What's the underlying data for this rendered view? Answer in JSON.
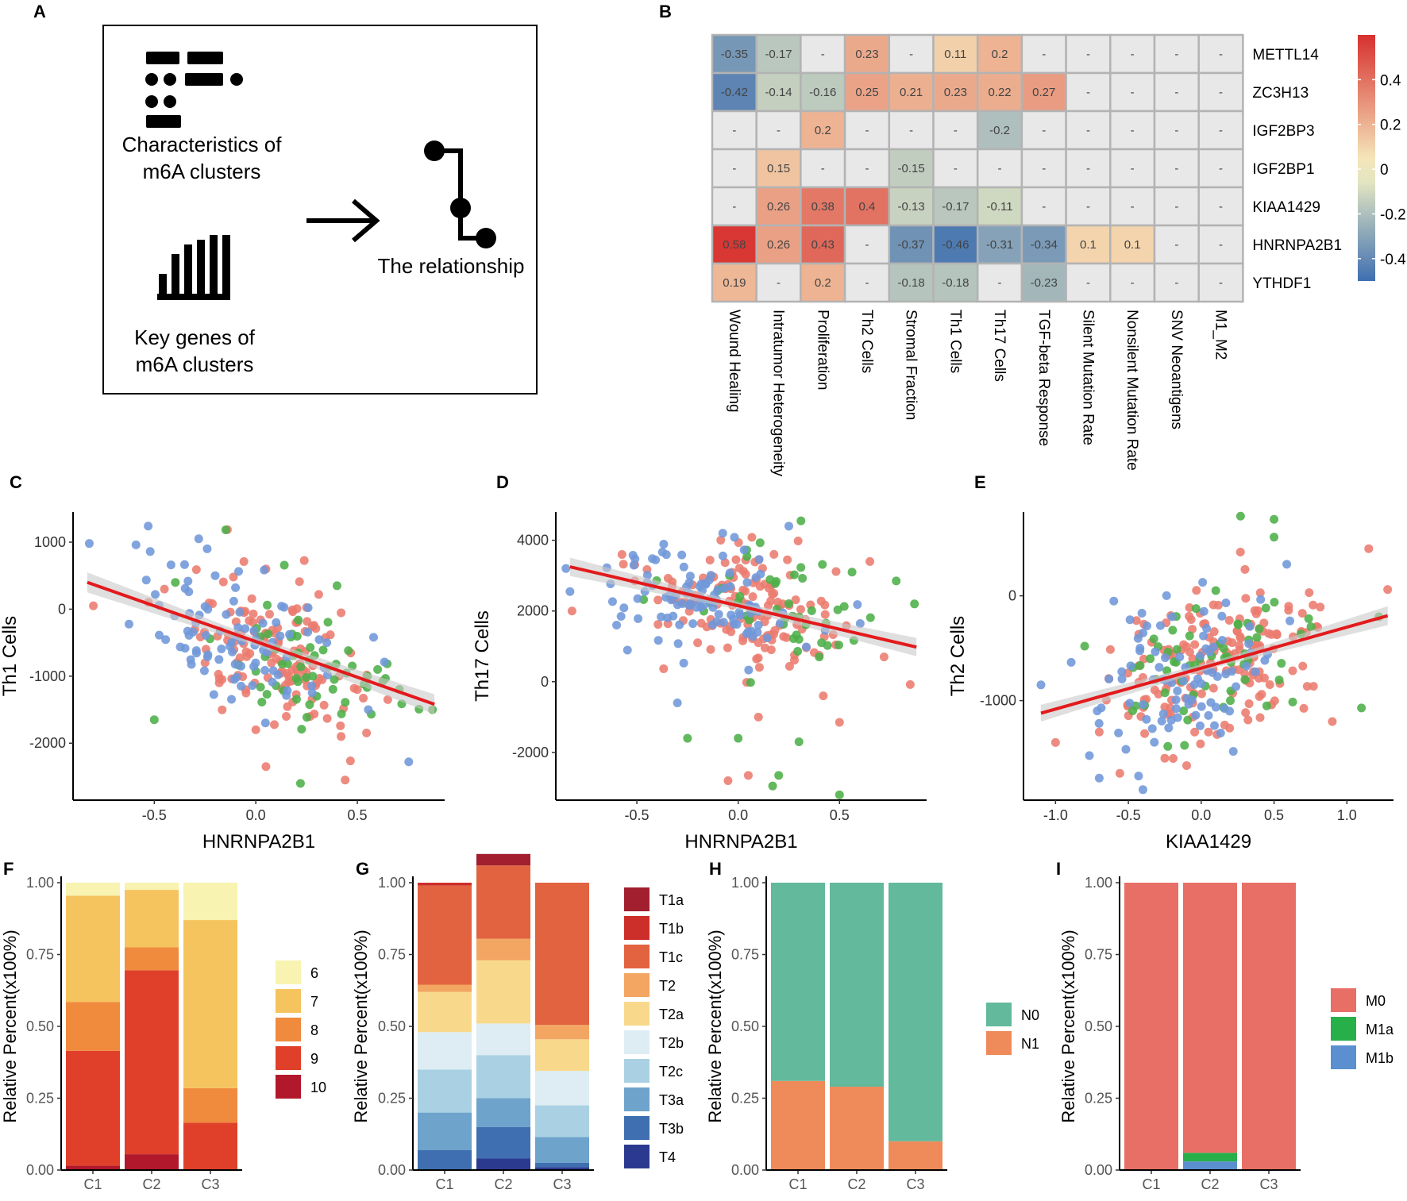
{
  "panel_labels": [
    "A",
    "B",
    "C",
    "D",
    "E",
    "F",
    "G",
    "H",
    "I"
  ],
  "schematic": {
    "block1_line1": "Characteristics of",
    "block1_line2": "m6A clusters",
    "block2_line1": "Key genes of",
    "block2_line2": "m6A clusters",
    "block3": "The relationship",
    "icon_list": "list-icon",
    "icon_bars": "bar-chart-icon",
    "icon_arrow": "arrow-right-icon",
    "icon_path": "path-nodes-icon"
  },
  "chart_data": [
    {
      "panel": "B",
      "type": "heatmap",
      "rows": [
        "METTL14",
        "ZC3H13",
        "IGF2BP3",
        "IGF2BP1",
        "KIAA1429",
        "HNRNPA2B1",
        "YTHDF1"
      ],
      "cols": [
        "Wound Healing",
        "Intratumor Heterogeneity",
        "Proliferation",
        "Th2 Cells",
        "Stromal Fraction",
        "Th1 Cells",
        "Th17 Cells",
        "TGF-beta Response",
        "Silent Mutation Rate",
        "Nonsilent Mutation Rate",
        "SNV Neoantigens",
        "M1_M2"
      ],
      "values": [
        [
          -0.35,
          -0.17,
          null,
          0.23,
          null,
          0.11,
          0.2,
          null,
          null,
          null,
          null,
          null
        ],
        [
          -0.42,
          -0.14,
          -0.16,
          0.25,
          0.21,
          0.23,
          0.22,
          0.27,
          null,
          null,
          null,
          null
        ],
        [
          null,
          null,
          0.2,
          null,
          null,
          null,
          -0.2,
          null,
          null,
          null,
          null,
          null
        ],
        [
          null,
          0.15,
          null,
          null,
          -0.15,
          null,
          null,
          null,
          null,
          null,
          null,
          null
        ],
        [
          null,
          0.26,
          0.38,
          0.4,
          -0.13,
          -0.17,
          -0.11,
          null,
          null,
          null,
          null,
          null
        ],
        [
          0.58,
          0.26,
          0.43,
          null,
          -0.37,
          -0.46,
          -0.31,
          -0.34,
          0.1,
          0.1,
          null,
          null
        ],
        [
          0.19,
          null,
          0.2,
          null,
          -0.18,
          -0.18,
          null,
          -0.23,
          null,
          null,
          null,
          null
        ]
      ],
      "missing_label": "-",
      "range": [
        -0.5,
        0.6
      ],
      "legend_ticks": [
        0.4,
        0.2,
        0,
        -0.2,
        -0.4
      ],
      "legend_tick_labels": [
        "0.4",
        "0.2",
        "0",
        "-0.2",
        "-0.4"
      ]
    },
    {
      "panel": "C",
      "type": "scatter",
      "xlabel": "HNRNPA2B1",
      "ylabel": "Th1 Cells",
      "xlim": [
        -0.9,
        0.93
      ],
      "ylim": [
        -2850,
        1450
      ],
      "xticks": [
        -0.5,
        0.0,
        0.5
      ],
      "xtick_labels": [
        "-0.5",
        "0.0",
        "0.5"
      ],
      "yticks": [
        -2000,
        -1000,
        0,
        1000
      ],
      "ytick_labels": [
        "-2000",
        "-1000",
        "0",
        "1000"
      ],
      "fit": {
        "x0": -0.83,
        "y0": 400,
        "x1": 0.88,
        "y1": -1420
      },
      "band_halfwidth": [
        150,
        60,
        150
      ],
      "points": [
        {
          "x": -0.82,
          "y": 980,
          "c": "C1"
        },
        {
          "x": -0.53,
          "y": 1240,
          "c": "C1"
        },
        {
          "x": -0.59,
          "y": 960,
          "c": "C1"
        },
        {
          "x": -0.52,
          "y": 860,
          "c": "C1"
        },
        {
          "x": -0.8,
          "y": 50,
          "c": "C2"
        },
        {
          "x": -0.5,
          "y": -1650,
          "c": "C3"
        },
        {
          "x": 0.22,
          "y": -2600,
          "c": "C3"
        },
        {
          "x": 0.44,
          "y": -2550,
          "c": "C2"
        },
        {
          "x": 0.05,
          "y": -2350,
          "c": "C2"
        },
        {
          "x": 0.87,
          "y": -1500,
          "c": "C3"
        },
        {
          "x": 0.58,
          "y": -420,
          "c": "C1"
        },
        {
          "x": 0.4,
          "y": 350,
          "c": "C3"
        },
        {
          "x": -0.33,
          "y": 260,
          "c": "C1"
        },
        {
          "x": -0.2,
          "y": 500,
          "c": "C1"
        },
        {
          "x": -0.1,
          "y": 320,
          "c": "C1"
        },
        {
          "x": 0.05,
          "y": 600,
          "c": "C2"
        },
        {
          "x": 0.1,
          "y": -200,
          "c": "C1"
        },
        {
          "x": -0.12,
          "y": -500,
          "c": "C1"
        },
        {
          "x": -0.3,
          "y": -300,
          "c": "C2"
        },
        {
          "x": 0.2,
          "y": -900,
          "c": "C2"
        },
        {
          "x": 0.3,
          "y": -1300,
          "c": "C3"
        },
        {
          "x": 0.42,
          "y": -1900,
          "c": "C2"
        },
        {
          "x": 0.55,
          "y": -1000,
          "c": "C3"
        },
        {
          "x": 0.65,
          "y": -1350,
          "c": "C2"
        },
        {
          "x": 0.0,
          "y": -1800,
          "c": "C2"
        },
        {
          "x": -0.05,
          "y": -1200,
          "c": "C2"
        },
        {
          "x": 0.15,
          "y": -1600,
          "c": "C2"
        },
        {
          "x": 0.28,
          "y": -1000,
          "c": "C3"
        },
        {
          "x": -0.4,
          "y": -100,
          "c": "C1"
        },
        {
          "x": -0.25,
          "y": -800,
          "c": "C2"
        },
        {
          "x": -0.45,
          "y": 300,
          "c": "C2"
        },
        {
          "x": 0.35,
          "y": -500,
          "c": "C1"
        },
        {
          "x": 0.5,
          "y": -1200,
          "c": "C2"
        },
        {
          "x": 0.6,
          "y": -900,
          "c": "C3"
        },
        {
          "x": 0.12,
          "y": -400,
          "c": "C1"
        },
        {
          "x": -0.18,
          "y": -1100,
          "c": "C2"
        }
      ],
      "scatter_generator": {
        "seed": 11,
        "n": 260,
        "x_mean": -0.02,
        "x_sd": 0.24,
        "resid_sd": 520,
        "cluster_x_shift": {
          "C1": -0.08,
          "C2": 0.1,
          "C3": 0.3
        }
      }
    },
    {
      "panel": "D",
      "type": "scatter",
      "xlabel": "HNRNPA2B1",
      "ylabel": "Th17 Cells",
      "xlim": [
        -0.9,
        0.93
      ],
      "ylim": [
        -3350,
        4800
      ],
      "xticks": [
        -0.5,
        0.0,
        0.5
      ],
      "xtick_labels": [
        "-0.5",
        "0.0",
        "0.5"
      ],
      "yticks": [
        -2000,
        0,
        2000,
        4000
      ],
      "ytick_labels": [
        "-2000",
        "0",
        "2000",
        "4000"
      ],
      "fit": {
        "x0": -0.83,
        "y0": 3250,
        "x1": 0.88,
        "y1": 980
      },
      "band_halfwidth": [
        260,
        100,
        260
      ],
      "points": [
        {
          "x": 0.31,
          "y": 4550,
          "c": "C3"
        },
        {
          "x": 0.25,
          "y": 4400,
          "c": "C1"
        },
        {
          "x": 0.87,
          "y": 2200,
          "c": "C3"
        },
        {
          "x": 0.78,
          "y": 2850,
          "c": "C3"
        },
        {
          "x": 0.65,
          "y": 3400,
          "c": "C2"
        },
        {
          "x": -0.82,
          "y": 2000,
          "c": "C2"
        },
        {
          "x": -0.83,
          "y": 2550,
          "c": "C1"
        },
        {
          "x": 0.5,
          "y": -3200,
          "c": "C3"
        },
        {
          "x": 0.2,
          "y": -2650,
          "c": "C3"
        },
        {
          "x": 0.17,
          "y": -2950,
          "c": "C3"
        },
        {
          "x": 0.05,
          "y": -2650,
          "c": "C2"
        },
        {
          "x": -0.25,
          "y": -1600,
          "c": "C3"
        },
        {
          "x": 0.0,
          "y": -1600,
          "c": "C3"
        },
        {
          "x": 0.3,
          "y": -1700,
          "c": "C3"
        },
        {
          "x": 0.5,
          "y": -1150,
          "c": "C2"
        },
        {
          "x": -0.05,
          "y": -2800,
          "c": "C2"
        },
        {
          "x": 0.1,
          "y": -1000,
          "c": "C2"
        },
        {
          "x": 0.42,
          "y": -400,
          "c": "C2"
        },
        {
          "x": 0.4,
          "y": 700,
          "c": "C3"
        },
        {
          "x": -0.2,
          "y": 1100,
          "c": "C2"
        },
        {
          "x": 0.72,
          "y": 700,
          "c": "C2"
        },
        {
          "x": -0.3,
          "y": -600,
          "c": "C1"
        },
        {
          "x": 0.1,
          "y": 1600,
          "c": "C1"
        },
        {
          "x": -0.1,
          "y": 2600,
          "c": "C1"
        },
        {
          "x": 0.3,
          "y": 1200,
          "c": "C3"
        },
        {
          "x": -0.45,
          "y": 2800,
          "c": "C1"
        },
        {
          "x": 0.22,
          "y": 2200,
          "c": "C2"
        },
        {
          "x": -0.6,
          "y": 1600,
          "c": "C1"
        }
      ],
      "scatter_generator": {
        "seed": 23,
        "n": 280,
        "x_mean": -0.05,
        "x_sd": 0.24,
        "resid_sd": 780,
        "cluster_x_shift": {
          "C1": -0.1,
          "C2": 0.08,
          "C3": 0.25
        }
      }
    },
    {
      "panel": "E",
      "type": "scatter",
      "xlabel": "KIAA1429",
      "ylabel": "Th2 Cells",
      "xlim": [
        -1.22,
        1.32
      ],
      "ylim": [
        -1950,
        800
      ],
      "xticks": [
        -1.0,
        -0.5,
        0.0,
        0.5,
        1.0
      ],
      "xtick_labels": [
        "-1.0",
        "-0.5",
        "0.0",
        "0.5",
        "1.0"
      ],
      "yticks": [
        -1000,
        0
      ],
      "ytick_labels": [
        "-1000",
        "0"
      ],
      "fit": {
        "x0": -1.1,
        "y0": -1120,
        "x1": 1.28,
        "y1": -190
      },
      "band_halfwidth": [
        80,
        30,
        90
      ],
      "points": [
        {
          "x": 0.27,
          "y": 760,
          "c": "C3"
        },
        {
          "x": 0.5,
          "y": 730,
          "c": "C3"
        },
        {
          "x": 0.5,
          "y": 560,
          "c": "C3"
        },
        {
          "x": 1.15,
          "y": 450,
          "c": "C2"
        },
        {
          "x": 1.28,
          "y": 60,
          "c": "C2"
        },
        {
          "x": 1.22,
          "y": -200,
          "c": "C3"
        },
        {
          "x": -1.1,
          "y": -850,
          "c": "C1"
        },
        {
          "x": -1.0,
          "y": -1400,
          "c": "C2"
        },
        {
          "x": -0.4,
          "y": -1850,
          "c": "C1"
        },
        {
          "x": -0.43,
          "y": -1720,
          "c": "C1"
        },
        {
          "x": -0.7,
          "y": -1740,
          "c": "C1"
        },
        {
          "x": -0.1,
          "y": -1620,
          "c": "C2"
        },
        {
          "x": -0.25,
          "y": -1550,
          "c": "C2"
        },
        {
          "x": 1.1,
          "y": -1070,
          "c": "C3"
        },
        {
          "x": 0.9,
          "y": -1200,
          "c": "C2"
        },
        {
          "x": -0.8,
          "y": -480,
          "c": "C3"
        },
        {
          "x": -0.6,
          "y": -50,
          "c": "C1"
        },
        {
          "x": -0.2,
          "y": -200,
          "c": "C1"
        },
        {
          "x": 0.1,
          "y": 50,
          "c": "C3"
        },
        {
          "x": 0.6,
          "y": -100,
          "c": "C2"
        },
        {
          "x": 0.8,
          "y": -300,
          "c": "C2"
        },
        {
          "x": 0.3,
          "y": -800,
          "c": "C3"
        },
        {
          "x": -0.35,
          "y": -600,
          "c": "C3"
        },
        {
          "x": 0.2,
          "y": -1000,
          "c": "C3"
        },
        {
          "x": -0.45,
          "y": -1050,
          "c": "C3"
        },
        {
          "x": 0.45,
          "y": -1050,
          "c": "C3"
        },
        {
          "x": 0.05,
          "y": -1300,
          "c": "C2"
        },
        {
          "x": -0.7,
          "y": -1300,
          "c": "C2"
        }
      ],
      "scatter_generator": {
        "seed": 37,
        "n": 300,
        "x_mean": -0.08,
        "x_sd": 0.35,
        "resid_sd": 330,
        "cluster_x_shift": {
          "C1": -0.1,
          "C2": 0.15,
          "C3": 0.1
        }
      }
    },
    {
      "panel": "F",
      "type": "stacked_bar",
      "categories": [
        "C1",
        "C2",
        "C3"
      ],
      "ylabel": "Relative Percent(x100%)",
      "yticks": [
        0.0,
        0.25,
        0.5,
        0.75,
        1.0
      ],
      "ytick_labels": [
        "0.00",
        "0.25",
        "0.50",
        "0.75",
        "1.00"
      ],
      "series": [
        {
          "name": "10",
          "color": "#b2182b",
          "values": [
            0.015,
            0.055,
            0.0
          ]
        },
        {
          "name": "9",
          "color": "#e0402a",
          "values": [
            0.4,
            0.64,
            0.165
          ]
        },
        {
          "name": "8",
          "color": "#f08a3d",
          "values": [
            0.17,
            0.08,
            0.12
          ]
        },
        {
          "name": "7",
          "color": "#f5c45e",
          "values": [
            0.37,
            0.2,
            0.585
          ]
        },
        {
          "name": "6",
          "color": "#f8f3b0",
          "values": [
            0.045,
            0.025,
            0.13
          ]
        }
      ],
      "legend_order": [
        "6",
        "7",
        "8",
        "9",
        "10"
      ]
    },
    {
      "panel": "G",
      "type": "stacked_bar",
      "categories": [
        "C1",
        "C2",
        "C3"
      ],
      "ylabel": "Relative Percent(x100%)",
      "yticks": [
        0.0,
        0.25,
        0.5,
        0.75,
        1.0
      ],
      "ytick_labels": [
        "0.00",
        "0.25",
        "0.50",
        "0.75",
        "1.00"
      ],
      "series": [
        {
          "name": "T4",
          "color": "#2b3a8f",
          "values": [
            0.0,
            0.04,
            0.01
          ]
        },
        {
          "name": "T3b",
          "color": "#3f6fb0",
          "values": [
            0.07,
            0.11,
            0.015
          ]
        },
        {
          "name": "T3a",
          "color": "#6ea3cc",
          "values": [
            0.13,
            0.1,
            0.09
          ]
        },
        {
          "name": "T2c",
          "color": "#a9d1e3",
          "values": [
            0.15,
            0.15,
            0.11
          ]
        },
        {
          "name": "T2b",
          "color": "#ddedf3",
          "values": [
            0.13,
            0.11,
            0.12
          ]
        },
        {
          "name": "T2a",
          "color": "#f8d98c",
          "values": [
            0.14,
            0.22,
            0.11
          ]
        },
        {
          "name": "T2",
          "color": "#f2a662",
          "values": [
            0.025,
            0.075,
            0.05
          ]
        },
        {
          "name": "T1c",
          "color": "#e2633f",
          "values": [
            0.345,
            0.255,
            0.495
          ]
        },
        {
          "name": "T1b",
          "color": "#cc2e29",
          "values": [
            0.01,
            0.0,
            0.0
          ]
        },
        {
          "name": "T1a",
          "color": "#a11f2e",
          "values": [
            0.0,
            0.04,
            0.0
          ]
        }
      ],
      "legend_order": [
        "T1a",
        "T1b",
        "T1c",
        "T2",
        "T2a",
        "T2b",
        "T2c",
        "T3a",
        "T3b",
        "T4"
      ]
    },
    {
      "panel": "H",
      "type": "stacked_bar",
      "categories": [
        "C1",
        "C2",
        "C3"
      ],
      "ylabel": "Relative Percent(x100%)",
      "yticks": [
        0.0,
        0.25,
        0.5,
        0.75,
        1.0
      ],
      "ytick_labels": [
        "0.00",
        "0.25",
        "0.50",
        "0.75",
        "1.00"
      ],
      "series": [
        {
          "name": "N1",
          "color": "#ef8a5b",
          "values": [
            0.31,
            0.29,
            0.1
          ]
        },
        {
          "name": "N0",
          "color": "#62b99b",
          "values": [
            0.69,
            0.71,
            0.9
          ]
        }
      ],
      "legend_order": [
        "N0",
        "N1"
      ]
    },
    {
      "panel": "I",
      "type": "stacked_bar",
      "categories": [
        "C1",
        "C2",
        "C3"
      ],
      "ylabel": "Relative Percent(x100%)",
      "yticks": [
        0.0,
        0.25,
        0.5,
        0.75,
        1.0
      ],
      "ytick_labels": [
        "0.00",
        "0.25",
        "0.50",
        "0.75",
        "1.00"
      ],
      "series": [
        {
          "name": "M1b",
          "color": "#5b8fd0",
          "values": [
            0.0,
            0.03,
            0.0
          ]
        },
        {
          "name": "M1a",
          "color": "#27b04a",
          "values": [
            0.0,
            0.03,
            0.0
          ]
        },
        {
          "name": "M0",
          "color": "#e86f66",
          "values": [
            1.0,
            0.94,
            1.0
          ]
        }
      ],
      "legend_order": [
        "M0",
        "M1a",
        "M1b"
      ]
    }
  ],
  "cluster_colors": {
    "C1": "#6f97d9",
    "C2": "#ec7b6e",
    "C3": "#4caf48"
  },
  "heat_colors": {
    "neg": "#3f6fb0",
    "mid": "#f8f5c5",
    "pos": "#d7302f",
    "missing": "#e8e8e8"
  },
  "fit_color": "#e31a1c",
  "band_color": "#c9c9c9"
}
